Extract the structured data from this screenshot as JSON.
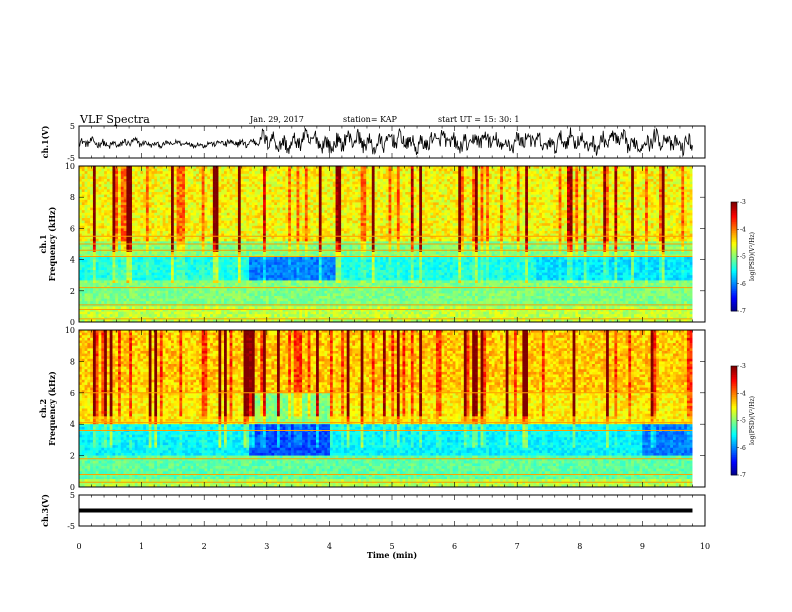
{
  "header": {
    "title": "VLF Spectra",
    "date": "Jan. 29, 2017",
    "station": "station= KAP",
    "start_ut": "start  UT  =   15: 30: 1"
  },
  "chart_data": {
    "type": "heatmap",
    "time_axis": {
      "label": "Time  (min)",
      "range": [
        0,
        10
      ],
      "ticks": [
        "0",
        "1",
        "2",
        "3",
        "4",
        "5",
        "6",
        "7",
        "8",
        "9",
        "10"
      ]
    },
    "panels": [
      {
        "name": "ch.1 waveform",
        "type": "line",
        "ylabel": "ch.1(V)",
        "ylim": [
          -5,
          5
        ],
        "yticks": [
          "5",
          "-5"
        ],
        "data_end_min": 9.8
      },
      {
        "name": "ch.1 spectrogram",
        "type": "heatmap",
        "ylabel": "ch.1\nFrequency  (kHz)",
        "ylim": [
          0,
          10
        ],
        "yticks": [
          "0",
          "2",
          "4",
          "6",
          "8",
          "10"
        ],
        "data_end_min": 9.8,
        "colorbar": {
          "label": "log(PSD)(V²/Hz)",
          "range": [
            -7,
            -3
          ],
          "ticks": [
            "-3",
            "-4",
            "-5",
            "-6",
            "-7"
          ]
        }
      },
      {
        "name": "ch.2 spectrogram",
        "type": "heatmap",
        "ylabel": "ch.2\nFrequency  (kHz)",
        "ylim": [
          0,
          10
        ],
        "yticks": [
          "0",
          "2",
          "4",
          "6",
          "8",
          "10"
        ],
        "data_end_min": 9.8,
        "colorbar": {
          "label": "log(PSD)(V²/Hz)",
          "range": [
            -7,
            -3
          ],
          "ticks": [
            "-3",
            "-4",
            "-5",
            "-6",
            "-7"
          ]
        }
      },
      {
        "name": "ch.3 waveform",
        "type": "line",
        "ylabel": "ch.3(V)",
        "ylim": [
          -5,
          5
        ],
        "yticks": [
          "5",
          "-5"
        ],
        "constant_value": 0,
        "data_end_min": 9.8
      }
    ]
  }
}
